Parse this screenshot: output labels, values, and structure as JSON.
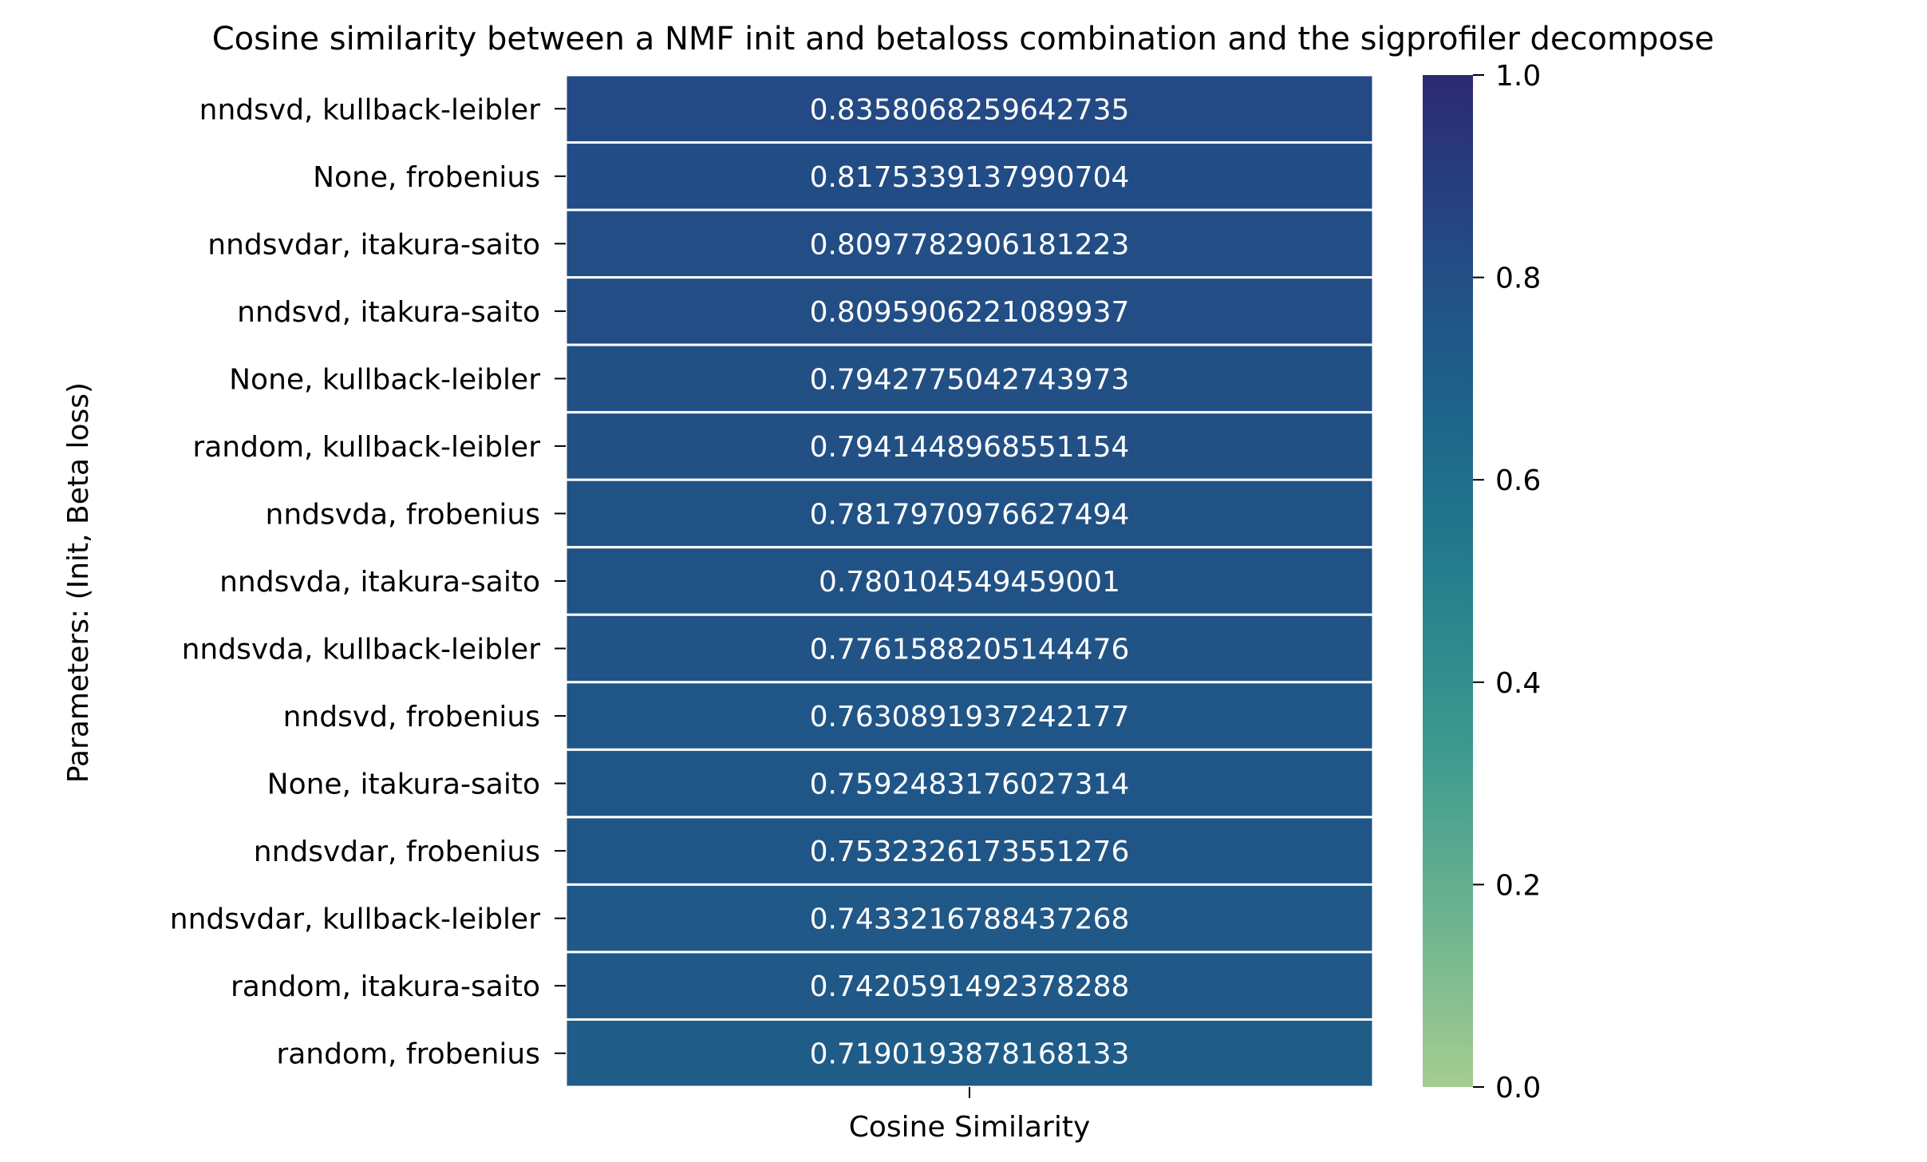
{
  "chart_data": {
    "type": "heatmap",
    "title": "Cosine similarity between a NMF init and betaloss combination and the sigprofiler decompose",
    "xlabel": "Cosine Similarity",
    "ylabel": "Parameters: (Init, Beta loss)",
    "x_categories": [
      "Cosine Similarity"
    ],
    "y_categories": [
      "nndsvd, kullback-leibler",
      "None, frobenius",
      "nndsvdar, itakura-saito",
      "nndsvd, itakura-saito",
      "None, kullback-leibler",
      "random, kullback-leibler",
      "nndsvda, frobenius",
      "nndsvda, itakura-saito",
      "nndsvda, kullback-leibler",
      "nndsvd, frobenius",
      "None, itakura-saito",
      "nndsvdar, frobenius",
      "nndsvdar, kullback-leibler",
      "random, itakura-saito",
      "random, frobenius"
    ],
    "values": [
      0.8358068259642735,
      0.8175339137990704,
      0.8097782906181223,
      0.8095906221089937,
      0.7942775042743973,
      0.7941448968551154,
      0.7817970976627494,
      0.780104549459001,
      0.7761588205144476,
      0.7630891937242177,
      0.7592483176027314,
      0.7532326173551276,
      0.7433216788437268,
      0.7420591492378288,
      0.7190193878168133
    ],
    "value_labels": [
      "0.8358068259642735",
      "0.8175339137990704",
      "0.8097782906181223",
      "0.8095906221089937",
      "0.7942775042743973",
      "0.7941448968551154",
      "0.7817970976627494",
      "0.780104549459001",
      "0.7761588205144476",
      "0.7630891937242177",
      "0.7592483176027314",
      "0.7532326173551276",
      "0.7433216788437268",
      "0.7420591492378288",
      "0.7190193878168133"
    ],
    "colorbar": {
      "vmin": 0.0,
      "vmax": 1.0,
      "ticks": [
        0.0,
        0.2,
        0.4,
        0.6,
        0.8,
        1.0
      ],
      "tick_labels": [
        "0.0",
        "0.2",
        "0.4",
        "0.6",
        "0.8",
        "1.0"
      ],
      "colormap": "crest",
      "colors": [
        "#a5cd90",
        "#6cb38f",
        "#3d9a8f",
        "#257f8d",
        "#1d648a",
        "#234a84",
        "#2d2970"
      ]
    },
    "annotation_color": "#ffffff",
    "cell_border_color": "#ffffff"
  }
}
